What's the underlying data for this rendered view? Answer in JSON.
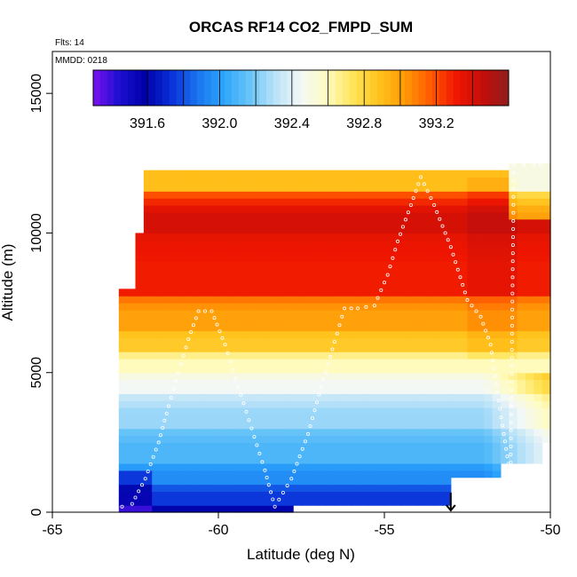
{
  "chart_data": {
    "type": "heatmap",
    "title": "ORCAS RF14 CO2_FMPD_SUM",
    "flights_label": "Flts: 14",
    "date_label": "MMDD: 0218",
    "xlabel": "Latitude (deg N)",
    "ylabel": "Altitude (m)",
    "xlim": [
      -65,
      -50
    ],
    "ylim": [
      0,
      16500
    ],
    "x_ticks": [
      -65,
      -60,
      -55,
      -50
    ],
    "y_ticks": [
      0,
      5000,
      10000,
      15000
    ],
    "colorbar": {
      "min": 391.3,
      "max": 393.6,
      "tick_values": [
        391.6,
        392.0,
        392.4,
        392.8,
        393.2
      ],
      "tick_labels": [
        "391.6",
        "392.0",
        "392.4",
        "392.8",
        "393.2"
      ],
      "divider_values": [
        391.6,
        391.8,
        392.0,
        392.2,
        392.4,
        392.6,
        392.8,
        393.0,
        393.2,
        393.4
      ],
      "colors": [
        "#7b12f0",
        "#1b0fd1",
        "#0000a8",
        "#0a2fd8",
        "#1a73f0",
        "#2ca4fb",
        "#67c4f8",
        "#b9e2f8",
        "#f3f8f6",
        "#fffcc0",
        "#ffe45a",
        "#ffc31c",
        "#ff9a06",
        "#ff5a00",
        "#f01600",
        "#c40e0a",
        "#8e1e1e"
      ]
    },
    "field_layers": [
      {
        "alt_min": 0,
        "alt_max": 300,
        "value": 391.6
      },
      {
        "alt_min": 300,
        "alt_max": 1000,
        "value": 391.75
      },
      {
        "alt_min": 1000,
        "alt_max": 1800,
        "value": 391.95
      },
      {
        "alt_min": 1800,
        "alt_max": 3000,
        "value": 392.1
      },
      {
        "alt_min": 3000,
        "alt_max": 4200,
        "value": 392.25
      },
      {
        "alt_min": 4200,
        "alt_max": 5000,
        "value": 392.45
      },
      {
        "alt_min": 5000,
        "alt_max": 5800,
        "value": 392.6
      },
      {
        "alt_min": 5800,
        "alt_max": 6600,
        "value": 392.85
      },
      {
        "alt_min": 6600,
        "alt_max": 7800,
        "value": 393.0
      },
      {
        "alt_min": 7800,
        "alt_max": 10000,
        "value": 393.3
      },
      {
        "alt_min": 10000,
        "alt_max": 11500,
        "value": 393.4
      },
      {
        "alt_min": 11500,
        "alt_max": 12400,
        "value": 392.9
      }
    ],
    "flight_track": [
      [
        -62.9,
        200
      ],
      [
        -62.6,
        300
      ],
      [
        -62.2,
        1200
      ],
      [
        -61.8,
        2500
      ],
      [
        -61.5,
        3800
      ],
      [
        -61.2,
        5000
      ],
      [
        -60.9,
        6200
      ],
      [
        -60.6,
        7200
      ],
      [
        -60.2,
        7200
      ],
      [
        -59.8,
        6000
      ],
      [
        -59.4,
        4500
      ],
      [
        -59.0,
        3000
      ],
      [
        -58.6,
        1500
      ],
      [
        -58.3,
        200
      ],
      [
        -57.8,
        1200
      ],
      [
        -57.3,
        2800
      ],
      [
        -56.9,
        4500
      ],
      [
        -56.5,
        6100
      ],
      [
        -56.2,
        7300
      ],
      [
        -55.8,
        7300
      ],
      [
        -55.3,
        7400
      ],
      [
        -54.9,
        8500
      ],
      [
        -54.6,
        9700
      ],
      [
        -54.2,
        11000
      ],
      [
        -53.9,
        12000
      ],
      [
        -53.5,
        11000
      ],
      [
        -53.0,
        9500
      ],
      [
        -52.5,
        7600
      ],
      [
        -52.1,
        7000
      ],
      [
        -51.8,
        6000
      ],
      [
        -51.6,
        4300
      ],
      [
        -51.4,
        2800
      ],
      [
        -51.2,
        1200
      ],
      [
        -51.1,
        12450
      ],
      [
        -50.5,
        12450
      ],
      [
        -50.1,
        12450
      ]
    ],
    "aircraft_position": {
      "lat": -53.0,
      "alt": 0
    }
  }
}
